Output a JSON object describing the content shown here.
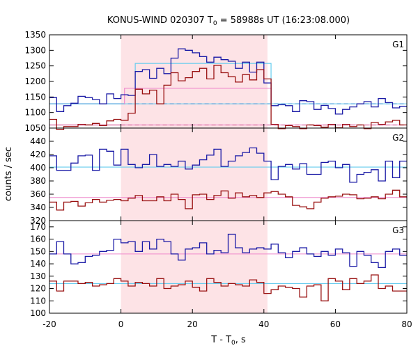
{
  "title_main": "KONUS-WIND 020307 T",
  "title_sub": "0",
  "title_rest": " = 58988s UT (16:23:08.000)",
  "chart_data": {
    "type": "line",
    "xlabel_main": "T - T",
    "xlabel_sub": "0",
    "xlabel_rest": ", s",
    "ylabel": "counts / sec",
    "xlim": [
      -20,
      80
    ],
    "x_ticks": [
      -20,
      0,
      20,
      40,
      60,
      80
    ],
    "highlight_interval": [
      0,
      41
    ],
    "colors": {
      "blue": "#1a1aa6",
      "red": "#991111",
      "cyan": "#66ccee",
      "pink": "#ee88cc",
      "shade": "#fde3e6"
    },
    "bin_edges": [
      -20,
      -18,
      -16,
      -14,
      -12,
      -10,
      -8,
      -6,
      -4,
      -2,
      0,
      2,
      4,
      6,
      8,
      10,
      12,
      14,
      16,
      18,
      20,
      22,
      24,
      26,
      28,
      30,
      32,
      34,
      36,
      38,
      40,
      42,
      44,
      46,
      48,
      50,
      52,
      54,
      56,
      58,
      60,
      62,
      64,
      66,
      68,
      70,
      72,
      74,
      76,
      78,
      80
    ],
    "panels": [
      {
        "name": "G1",
        "ylim": [
          1050,
          1350
        ],
        "y_ticks": [
          1050,
          1100,
          1150,
          1200,
          1250,
          1300,
          1350
        ],
        "series": [
          {
            "color": "blue",
            "values": [
              1148,
              1103,
              1122,
              1130,
              1152,
              1148,
              1142,
              1128,
              1160,
              1145,
              1157,
              1155,
              1232,
              1238,
              1210,
              1242,
              1225,
              1275,
              1305,
              1300,
              1292,
              1280,
              1262,
              1278,
              1270,
              1265,
              1242,
              1262,
              1230,
              1262,
              1195,
              1122,
              1125,
              1122,
              1103,
              1138,
              1135,
              1110,
              1123,
              1113,
              1095,
              1110,
              1118,
              1128,
              1135,
              1118,
              1145,
              1132,
              1115,
              1120
            ]
          },
          {
            "color": "red",
            "values": [
              1078,
              1045,
              1055,
              1055,
              1062,
              1060,
              1065,
              1058,
              1073,
              1078,
              1075,
              1098,
              1175,
              1160,
              1172,
              1128,
              1188,
              1228,
              1202,
              1212,
              1232,
              1242,
              1208,
              1252,
              1228,
              1215,
              1198,
              1222,
              1205,
              1238,
              1208,
              1062,
              1048,
              1058,
              1055,
              1048,
              1060,
              1058,
              1053,
              1062,
              1051,
              1062,
              1055,
              1060,
              1048,
              1068,
              1062,
              1070,
              1075,
              1060
            ]
          }
        ],
        "background_levels": [
          {
            "color": "blue",
            "value": 1128,
            "x_range": [
              -20,
              80
            ],
            "dashed_range": [
              0,
              80
            ]
          },
          {
            "color": "red",
            "value": 1060,
            "x_range": [
              -20,
              80
            ],
            "dashed_range": [
              0,
              80
            ]
          },
          {
            "color": "cyan",
            "value": 1128,
            "x_range": [
              -20,
              80
            ]
          },
          {
            "color": "pink",
            "value": 1060,
            "x_range": [
              -20,
              80
            ]
          }
        ],
        "source_intervals": [
          {
            "color": "cyan",
            "value": 1258,
            "x_range": [
              4,
              42
            ]
          },
          {
            "color": "pink",
            "value": 1178,
            "x_range": [
              1,
              42
            ]
          }
        ]
      },
      {
        "name": "G2",
        "ylim": [
          320,
          460
        ],
        "y_ticks": [
          320,
          340,
          360,
          380,
          400,
          420,
          440
        ],
        "series": [
          {
            "color": "blue",
            "values": [
              418,
              396,
              396,
              407,
              418,
              419,
              396,
              428,
              425,
              404,
              428,
              405,
              400,
              405,
              420,
              402,
              405,
              402,
              410,
              398,
              404,
              412,
              419,
              428,
              402,
              410,
              418,
              423,
              430,
              422,
              410,
              382,
              402,
              405,
              398,
              406,
              390,
              390,
              408,
              410,
              400,
              405,
              378,
              390,
              393,
              397,
              380,
              410,
              385,
              410
            ]
          },
          {
            "color": "red",
            "values": [
              348,
              336,
              348,
              349,
              342,
              347,
              352,
              348,
              351,
              352,
              350,
              354,
              358,
              350,
              350,
              356,
              350,
              360,
              352,
              338,
              359,
              360,
              352,
              358,
              365,
              354,
              362,
              356,
              358,
              355,
              362,
              364,
              360,
              356,
              343,
              341,
              338,
              348,
              354,
              356,
              357,
              360,
              359,
              353,
              354,
              356,
              353,
              360,
              366,
              356
            ]
          }
        ],
        "background_levels": [
          {
            "color": "cyan",
            "value": 401,
            "x_range": [
              -20,
              80
            ]
          },
          {
            "color": "pink",
            "value": 355,
            "x_range": [
              -20,
              80
            ]
          }
        ]
      },
      {
        "name": "G3",
        "ylim": [
          100,
          175
        ],
        "y_ticks": [
          100,
          110,
          120,
          130,
          140,
          150,
          160,
          170
        ],
        "series": [
          {
            "color": "blue",
            "values": [
              148,
              158,
              148,
              140,
              141,
              146,
              147,
              150,
              151,
              160,
              157,
              158,
              150,
              158,
              152,
              160,
              158,
              148,
              143,
              152,
              153,
              157,
              148,
              151,
              149,
              164,
              153,
              149,
              152,
              153,
              152,
              156,
              149,
              145,
              150,
              153,
              148,
              146,
              150,
              147,
              152,
              149,
              138,
              150,
              147,
              141,
              137,
              150,
              152,
              147
            ]
          },
          {
            "color": "red",
            "values": [
              126,
              118,
              126,
              126,
              124,
              125,
              122,
              123,
              124,
              128,
              126,
              122,
              125,
              124,
              122,
              128,
              120,
              122,
              123,
              126,
              121,
              118,
              128,
              125,
              122,
              124,
              123,
              122,
              127,
              125,
              116,
              119,
              122,
              121,
              120,
              113,
              122,
              123,
              110,
              128,
              126,
              119,
              128,
              124,
              126,
              131,
              120,
              122,
              118,
              118
            ]
          }
        ],
        "background_levels": [
          {
            "color": "pink",
            "value": 148,
            "x_range": [
              -20,
              80
            ]
          },
          {
            "color": "cyan",
            "value": 124,
            "x_range": [
              -20,
              80
            ]
          }
        ]
      }
    ]
  }
}
